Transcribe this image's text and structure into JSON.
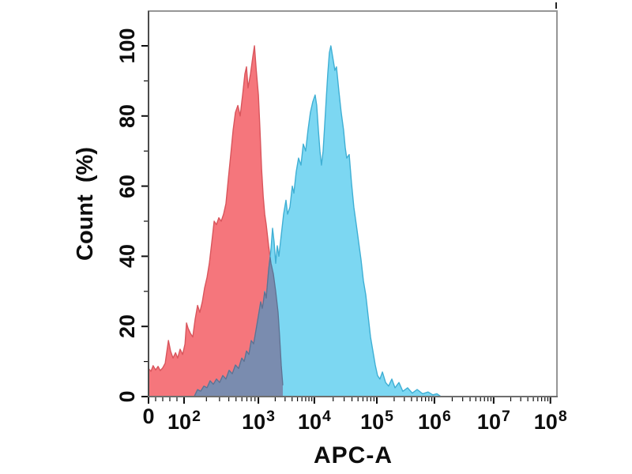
{
  "chart_data": {
    "type": "area",
    "subtype": "flow-cytometry-histogram-overlay",
    "title": "",
    "xlabel": "APC-A",
    "ylabel": "Count (%)",
    "x_scale": "logicle-log10",
    "ylim": [
      0,
      100
    ],
    "grid": false,
    "legend": null,
    "background": "#ffffff",
    "tick_color": "#0d0d0d",
    "border_colors": {
      "top": "#969696",
      "right": "#969696",
      "left": "#4b4b4b",
      "bottom": "#6e6e6e"
    },
    "corner_mark": true,
    "x_ticks": [
      {
        "base": "0",
        "exp": "",
        "value": 0,
        "frac": 0.0
      },
      {
        "base": "10",
        "exp": "2",
        "value": 100,
        "frac": 0.087
      },
      {
        "base": "10",
        "exp": "3",
        "value": 1000,
        "frac": 0.269
      },
      {
        "base": "10",
        "exp": "4",
        "value": 10000,
        "frac": 0.406
      },
      {
        "base": "10",
        "exp": "5",
        "value": 100000,
        "frac": 0.559
      },
      {
        "base": "10",
        "exp": "6",
        "value": 1000000,
        "frac": 0.7
      },
      {
        "base": "10",
        "exp": "7",
        "value": 10000000,
        "frac": 0.845
      },
      {
        "base": "10",
        "exp": "8",
        "value": 100000000,
        "frac": 0.984
      }
    ],
    "y_ticks": [
      {
        "label": "0",
        "value": 0
      },
      {
        "label": "20",
        "value": 20
      },
      {
        "label": "40",
        "value": 40
      },
      {
        "label": "60",
        "value": 60
      },
      {
        "label": "80",
        "value": 80
      },
      {
        "label": "100",
        "value": 100
      }
    ],
    "overlap": {
      "fill": "#7A8CAF",
      "stroke": "#5E7191"
    },
    "series": [
      {
        "name": "red-histogram",
        "fill": "#F5767C",
        "stroke": "#D9555C",
        "points": [
          [
            0,
            8
          ],
          [
            7,
            7.2
          ],
          [
            13,
            8.8
          ],
          [
            20,
            7.6
          ],
          [
            27,
            8.6
          ],
          [
            33,
            7.4
          ],
          [
            40,
            8.2
          ],
          [
            47,
            9.5
          ],
          [
            56,
            16
          ],
          [
            62,
            13
          ],
          [
            69,
            11
          ],
          [
            76,
            12.5
          ],
          [
            82,
            11
          ],
          [
            89,
            13.5
          ],
          [
            96,
            12
          ],
          [
            103,
            15
          ],
          [
            108,
            21
          ],
          [
            113,
            19.5
          ],
          [
            122,
            18
          ],
          [
            131,
            17
          ],
          [
            141,
            22
          ],
          [
            152,
            26
          ],
          [
            163,
            24
          ],
          [
            176,
            27
          ],
          [
            189,
            31
          ],
          [
            204,
            34
          ],
          [
            219,
            38
          ],
          [
            236,
            44
          ],
          [
            254,
            50
          ],
          [
            273,
            49
          ],
          [
            294,
            51
          ],
          [
            316,
            50
          ],
          [
            340,
            52
          ],
          [
            366,
            55
          ],
          [
            394,
            62
          ],
          [
            425,
            69
          ],
          [
            457,
            76
          ],
          [
            491,
            81
          ],
          [
            529,
            83
          ],
          [
            569,
            80
          ],
          [
            613,
            86
          ],
          [
            659,
            92
          ],
          [
            692,
            94
          ],
          [
            727,
            88
          ],
          [
            783,
            92
          ],
          [
            843,
            97
          ],
          [
            885,
            100
          ],
          [
            937,
            93
          ],
          [
            1000,
            86
          ],
          [
            1067,
            76
          ],
          [
            1140,
            65
          ],
          [
            1220,
            57
          ],
          [
            1300,
            52
          ],
          [
            1380,
            49
          ],
          [
            1520,
            43
          ],
          [
            1680,
            38
          ],
          [
            1850,
            35
          ],
          [
            2040,
            30
          ],
          [
            2250,
            24
          ],
          [
            2400,
            17
          ],
          [
            2560,
            9
          ],
          [
            2740,
            3
          ],
          [
            2820,
            0
          ]
        ]
      },
      {
        "name": "blue-histogram",
        "fill": "#7CD7F2",
        "stroke": "#3FAFD4",
        "points": [
          [
            137,
            0
          ],
          [
            152,
            2
          ],
          [
            167,
            1.5
          ],
          [
            185,
            3
          ],
          [
            204,
            2.5
          ],
          [
            224,
            4.5
          ],
          [
            248,
            3.5
          ],
          [
            273,
            5
          ],
          [
            301,
            4
          ],
          [
            332,
            6
          ],
          [
            366,
            5
          ],
          [
            404,
            7.5
          ],
          [
            446,
            6.5
          ],
          [
            491,
            9
          ],
          [
            542,
            8
          ],
          [
            598,
            11
          ],
          [
            644,
            10
          ],
          [
            692,
            13
          ],
          [
            745,
            12
          ],
          [
            802,
            16
          ],
          [
            863,
            15
          ],
          [
            929,
            19
          ],
          [
            1000,
            23
          ],
          [
            1100,
            27
          ],
          [
            1180,
            25
          ],
          [
            1300,
            30
          ],
          [
            1380,
            28
          ],
          [
            1520,
            36
          ],
          [
            1680,
            42
          ],
          [
            1790,
            48
          ],
          [
            1910,
            44
          ],
          [
            2040,
            38
          ],
          [
            2180,
            43
          ],
          [
            2320,
            40
          ],
          [
            2560,
            46
          ],
          [
            2820,
            52
          ],
          [
            3110,
            56
          ],
          [
            3320,
            52
          ],
          [
            3660,
            54
          ],
          [
            4040,
            60
          ],
          [
            4310,
            58
          ],
          [
            4740,
            64
          ],
          [
            5220,
            68
          ],
          [
            5770,
            66
          ],
          [
            6350,
            72
          ],
          [
            7000,
            70
          ],
          [
            7710,
            76
          ],
          [
            8510,
            81
          ],
          [
            9370,
            84
          ],
          [
            10300,
            86
          ],
          [
            10900,
            83
          ],
          [
            11600,
            76
          ],
          [
            12300,
            70
          ],
          [
            13000,
            66
          ],
          [
            13800,
            70
          ],
          [
            14600,
            77
          ],
          [
            15500,
            85
          ],
          [
            16400,
            92
          ],
          [
            17400,
            98
          ],
          [
            18400,
            100
          ],
          [
            19600,
            97
          ],
          [
            21300,
            93
          ],
          [
            22600,
            94
          ],
          [
            24700,
            87
          ],
          [
            26900,
            81
          ],
          [
            29400,
            76
          ],
          [
            31200,
            71
          ],
          [
            33000,
            68
          ],
          [
            36100,
            69
          ],
          [
            39300,
            61
          ],
          [
            42900,
            54
          ],
          [
            46900,
            49
          ],
          [
            51200,
            44
          ],
          [
            55800,
            39
          ],
          [
            61000,
            33
          ],
          [
            66500,
            29
          ],
          [
            72600,
            23
          ],
          [
            79300,
            17
          ],
          [
            86500,
            13
          ],
          [
            94400,
            9
          ],
          [
            103000,
            6
          ],
          [
            113000,
            5
          ],
          [
            125000,
            7
          ],
          [
            142000,
            4
          ],
          [
            160000,
            3
          ],
          [
            182000,
            5
          ],
          [
            207000,
            2.5
          ],
          [
            242000,
            4
          ],
          [
            283000,
            1.5
          ],
          [
            342000,
            2.5
          ],
          [
            413000,
            1
          ],
          [
            500000,
            2
          ],
          [
            624000,
            0.8
          ],
          [
            776000,
            1.3
          ],
          [
            939000,
            0.5
          ],
          [
            1100000,
            0.8
          ],
          [
            1290000,
            0
          ]
        ]
      }
    ]
  }
}
